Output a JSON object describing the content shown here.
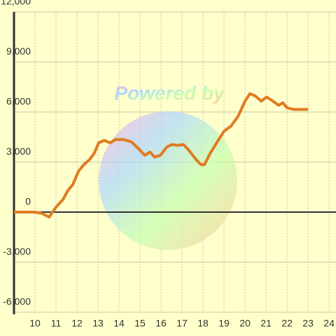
{
  "chart_data": {
    "type": "line",
    "watermark": "Powered by",
    "x": [
      9,
      10,
      10.33,
      10.67,
      11,
      11.33,
      11.57,
      11.8,
      12.07,
      12.33,
      12.6,
      12.83,
      13.03,
      13.3,
      13.57,
      13.83,
      14.23,
      14.6,
      14.93,
      15.23,
      15.47,
      15.7,
      15.97,
      16.27,
      16.53,
      16.8,
      17.07,
      17.33,
      17.67,
      17.9,
      18.07,
      18.33,
      18.67,
      19,
      19.33,
      19.67,
      20,
      20.23,
      20.5,
      20.77,
      21.03,
      21.33,
      21.6,
      21.8,
      22,
      22.33,
      23
    ],
    "values": [
      0,
      0,
      -80,
      -300,
      300,
      750,
      1300,
      1650,
      2450,
      2850,
      3150,
      3550,
      4150,
      4300,
      4150,
      4350,
      4350,
      4200,
      3800,
      3400,
      3600,
      3300,
      3400,
      3900,
      4050,
      4000,
      4050,
      3700,
      3150,
      2850,
      2850,
      3500,
      4200,
      4850,
      5150,
      5750,
      6650,
      7100,
      6950,
      6650,
      6900,
      6650,
      6400,
      6550,
      6250,
      6150,
      6150
    ],
    "color": "#e07b20",
    "xlim": [
      9,
      24.33
    ],
    "xticks": [
      10,
      11,
      12,
      13,
      14,
      15,
      16,
      17,
      18,
      19,
      20,
      21,
      22,
      23,
      24
    ],
    "ylim": [
      -6000,
      12000
    ],
    "yticks": [
      {
        "value": -6000,
        "label": "-6,000"
      },
      {
        "value": -3000,
        "label": "-3,000"
      },
      0,
      {
        "value": 3000,
        "label": "3,000"
      },
      {
        "value": 6000,
        "label": "6,000"
      },
      {
        "value": 9000,
        "label": "9,000"
      },
      {
        "value": 12000,
        "label": "12,000"
      }
    ],
    "grid": true
  }
}
